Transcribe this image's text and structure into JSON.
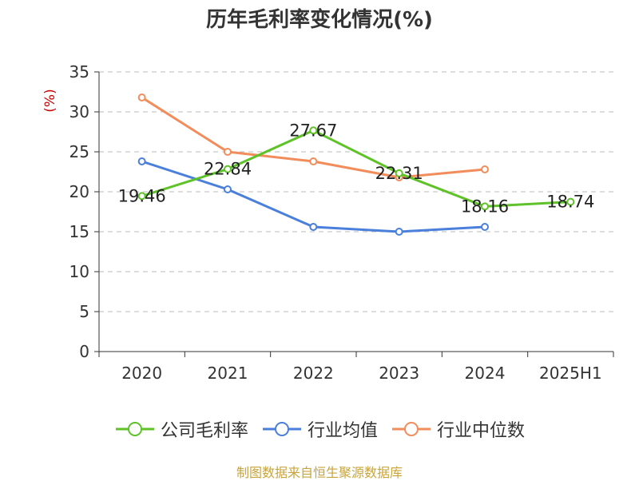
{
  "chart_data": {
    "type": "line",
    "title": "历年毛利率变化情况(%)",
    "ylabel": "(%)",
    "xlabel": "",
    "categories": [
      "2020",
      "2021",
      "2022",
      "2023",
      "2024",
      "2025H1"
    ],
    "ylim": [
      0,
      35
    ],
    "yticks": [
      "0",
      "5",
      "10",
      "15",
      "20",
      "25",
      "30",
      "35"
    ],
    "grid": "horizontal-dashed",
    "legend_position": "bottom",
    "series": [
      {
        "name": "公司毛利率",
        "color": "#5ec228",
        "values": [
          19.46,
          22.84,
          27.67,
          22.31,
          18.16,
          18.74
        ],
        "labels": [
          "19.46",
          "22.84",
          "27.67",
          "22.31",
          "18.16",
          "18.74"
        ]
      },
      {
        "name": "行业均值",
        "color": "#4a7fdc",
        "values": [
          23.8,
          20.3,
          15.6,
          15.0,
          15.6,
          null
        ]
      },
      {
        "name": "行业中位数",
        "color": "#f28c5a",
        "values": [
          31.8,
          25.0,
          23.8,
          21.8,
          22.8,
          null
        ]
      }
    ]
  },
  "source": "制图数据来自恒生聚源数据库"
}
